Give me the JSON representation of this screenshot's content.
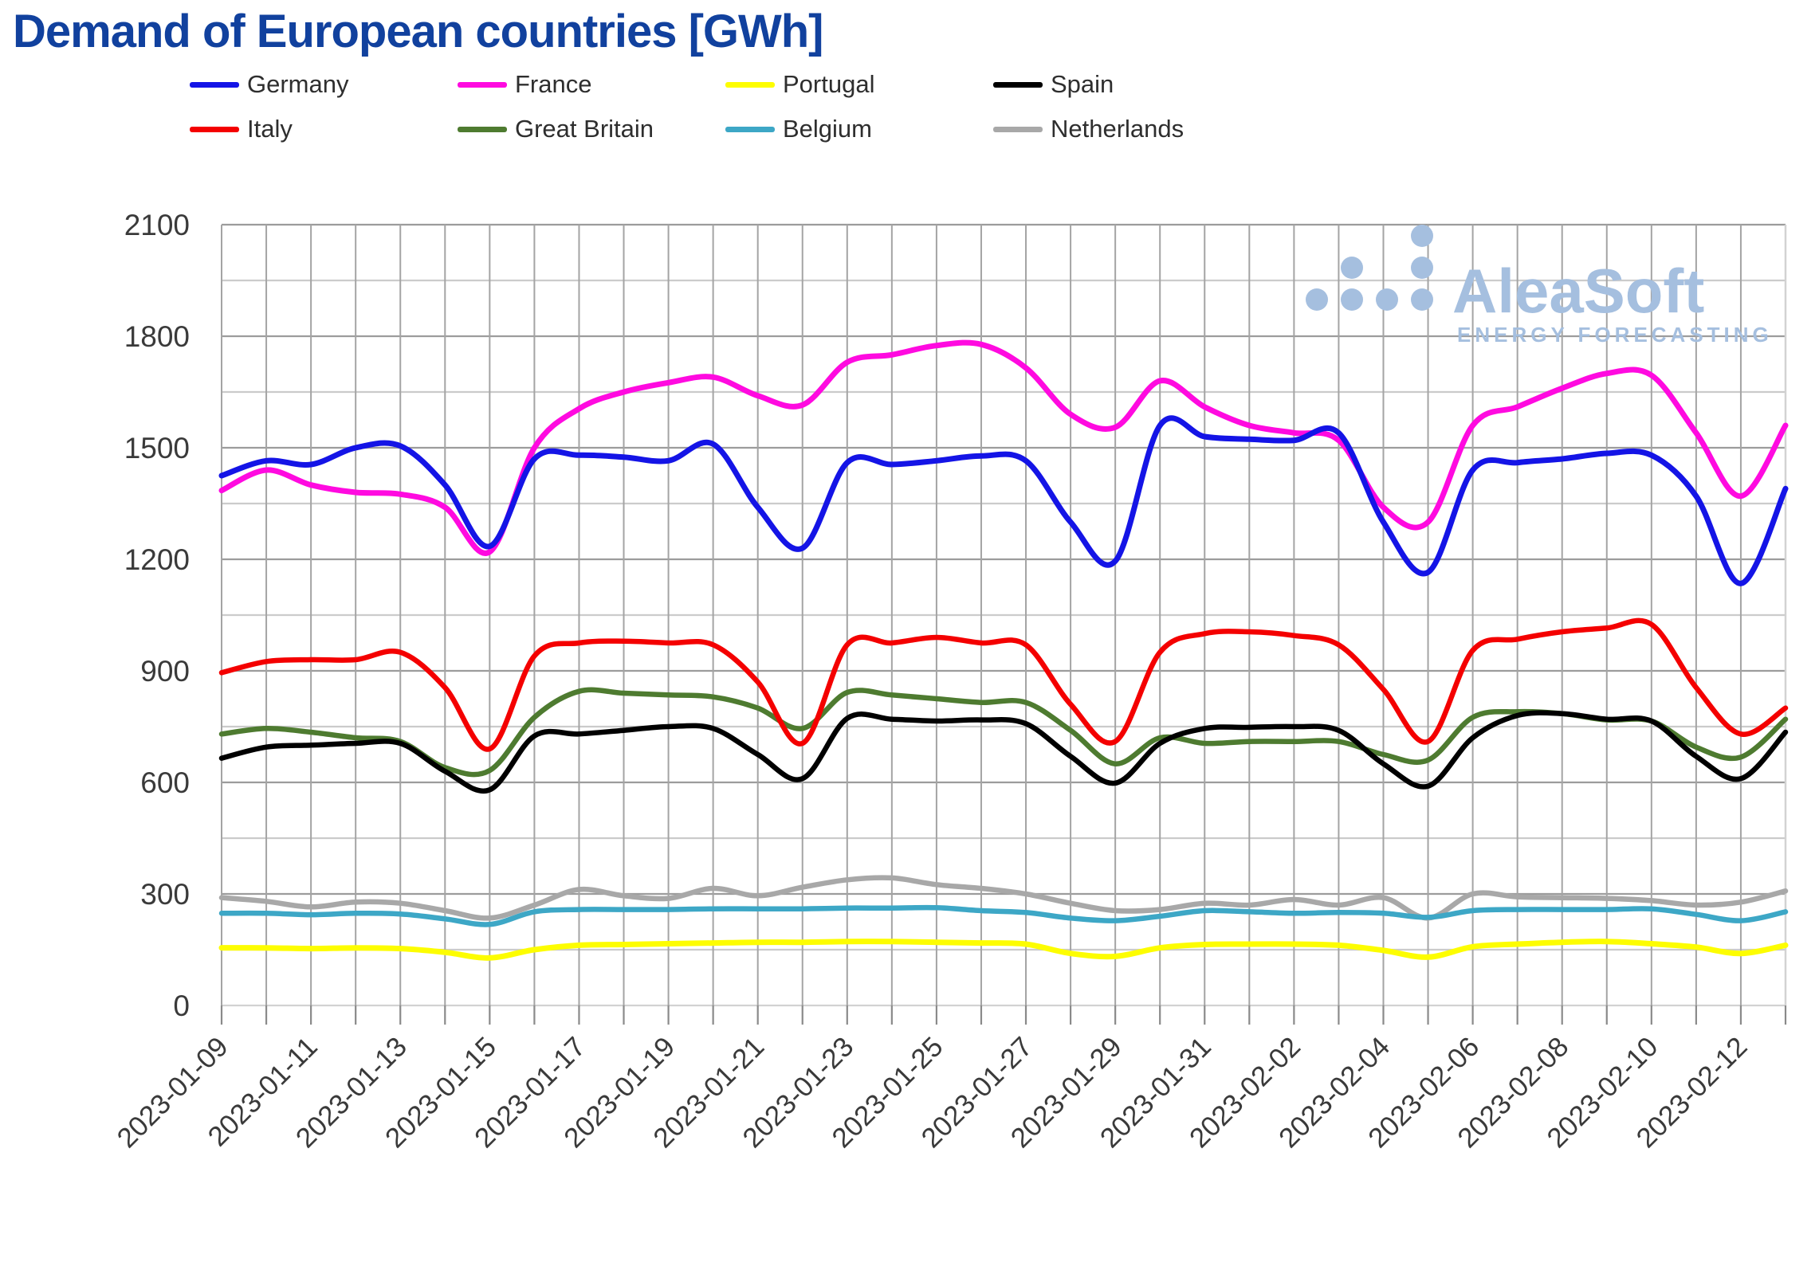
{
  "title": "Demand of European countries [GWh]",
  "logo": {
    "name": "AleaSoft",
    "subtitle": "ENERGY FORECASTING",
    "color": "#a5bfdf"
  },
  "axes": {
    "y": {
      "min": 0,
      "max": 2100,
      "major_step": 300,
      "minor_step": 150,
      "tick_labels": [
        "0",
        "300",
        "600",
        "900",
        "1200",
        "1500",
        "1800",
        "2100"
      ]
    },
    "x": {
      "tick_labels": [
        "2023-01-09",
        "2023-01-11",
        "2023-01-13",
        "2023-01-15",
        "2023-01-17",
        "2023-01-19",
        "2023-01-21",
        "2023-01-23",
        "2023-01-25",
        "2023-01-27",
        "2023-01-29",
        "2023-01-31",
        "2023-02-02",
        "2023-02-04",
        "2023-02-06",
        "2023-02-08",
        "2023-02-10",
        "2023-02-12"
      ]
    }
  },
  "style": {
    "grid_major": "#9c9c9c",
    "grid_minor": "#cbcbcb",
    "grid_vertical": "#a4a4a4",
    "frame_light": "#d2d2d2",
    "tick_color": "#8a8a8a",
    "axis_text": "#3a3a3a",
    "title_color": "#11419e"
  },
  "chart_data": {
    "type": "line",
    "title": "Demand of European countries [GWh]",
    "xlabel": "",
    "ylabel": "",
    "ylim": [
      0,
      2100
    ],
    "grid": true,
    "legend_position": "top",
    "x": [
      "2023-01-09",
      "2023-01-10",
      "2023-01-11",
      "2023-01-12",
      "2023-01-13",
      "2023-01-14",
      "2023-01-15",
      "2023-01-16",
      "2023-01-17",
      "2023-01-18",
      "2023-01-19",
      "2023-01-20",
      "2023-01-21",
      "2023-01-22",
      "2023-01-23",
      "2023-01-24",
      "2023-01-25",
      "2023-01-26",
      "2023-01-27",
      "2023-01-28",
      "2023-01-29",
      "2023-01-30",
      "2023-01-31",
      "2023-02-01",
      "2023-02-02",
      "2023-02-03",
      "2023-02-04",
      "2023-02-05",
      "2023-02-06",
      "2023-02-07",
      "2023-02-08",
      "2023-02-09",
      "2023-02-10",
      "2023-02-11",
      "2023-02-12",
      "2023-02-13"
    ],
    "series": [
      {
        "name": "Germany",
        "color": "#1414e6",
        "values": [
          1425,
          1465,
          1455,
          1500,
          1505,
          1400,
          1235,
          1470,
          1480,
          1475,
          1465,
          1510,
          1340,
          1230,
          1460,
          1455,
          1465,
          1478,
          1465,
          1300,
          1195,
          1560,
          1530,
          1523,
          1520,
          1540,
          1300,
          1165,
          1440,
          1460,
          1470,
          1485,
          1480,
          1370,
          1135,
          1390
        ]
      },
      {
        "name": "France",
        "color": "#ff0ae0",
        "values": [
          1385,
          1440,
          1400,
          1380,
          1375,
          1340,
          1220,
          1500,
          1605,
          1650,
          1675,
          1690,
          1640,
          1615,
          1730,
          1750,
          1775,
          1778,
          1715,
          1590,
          1555,
          1680,
          1610,
          1560,
          1540,
          1520,
          1340,
          1300,
          1560,
          1610,
          1660,
          1700,
          1695,
          1540,
          1370,
          1560
        ]
      },
      {
        "name": "Portugal",
        "color": "#fdfd00",
        "values": [
          155,
          155,
          153,
          155,
          153,
          143,
          128,
          150,
          162,
          164,
          166,
          168,
          170,
          170,
          172,
          172,
          170,
          168,
          165,
          140,
          132,
          155,
          164,
          165,
          165,
          162,
          148,
          130,
          158,
          165,
          170,
          172,
          166,
          157,
          140,
          162
        ]
      },
      {
        "name": "Spain",
        "color": "#000000",
        "values": [
          665,
          695,
          700,
          705,
          705,
          630,
          580,
          725,
          730,
          740,
          750,
          745,
          675,
          610,
          772,
          770,
          765,
          768,
          758,
          670,
          598,
          705,
          745,
          748,
          750,
          740,
          650,
          590,
          720,
          780,
          785,
          770,
          765,
          670,
          610,
          735
        ]
      },
      {
        "name": "Italy",
        "color": "#f40000",
        "values": [
          895,
          925,
          930,
          930,
          950,
          855,
          690,
          940,
          975,
          980,
          975,
          970,
          870,
          705,
          970,
          975,
          990,
          975,
          970,
          810,
          710,
          950,
          1000,
          1005,
          995,
          970,
          850,
          710,
          955,
          985,
          1005,
          1015,
          1025,
          855,
          730,
          800
        ]
      },
      {
        "name": "Great Britain",
        "color": "#4e7b30",
        "values": [
          730,
          745,
          735,
          720,
          710,
          640,
          632,
          775,
          845,
          840,
          835,
          830,
          800,
          745,
          842,
          835,
          825,
          815,
          815,
          740,
          650,
          720,
          705,
          710,
          710,
          710,
          675,
          660,
          775,
          790,
          785,
          768,
          765,
          695,
          668,
          770
        ]
      },
      {
        "name": "Belgium",
        "color": "#3da7c6",
        "values": [
          248,
          248,
          244,
          248,
          246,
          233,
          218,
          252,
          258,
          258,
          258,
          260,
          260,
          260,
          262,
          262,
          263,
          255,
          250,
          235,
          228,
          240,
          255,
          252,
          248,
          250,
          248,
          237,
          255,
          258,
          258,
          258,
          260,
          245,
          228,
          252
        ]
      },
      {
        "name": "Netherlands",
        "color": "#a8a8a8",
        "values": [
          290,
          280,
          265,
          278,
          275,
          255,
          235,
          270,
          312,
          295,
          288,
          315,
          295,
          318,
          338,
          343,
          325,
          315,
          300,
          275,
          255,
          258,
          275,
          270,
          285,
          270,
          290,
          235,
          300,
          292,
          290,
          288,
          282,
          270,
          278,
          308
        ]
      }
    ]
  }
}
